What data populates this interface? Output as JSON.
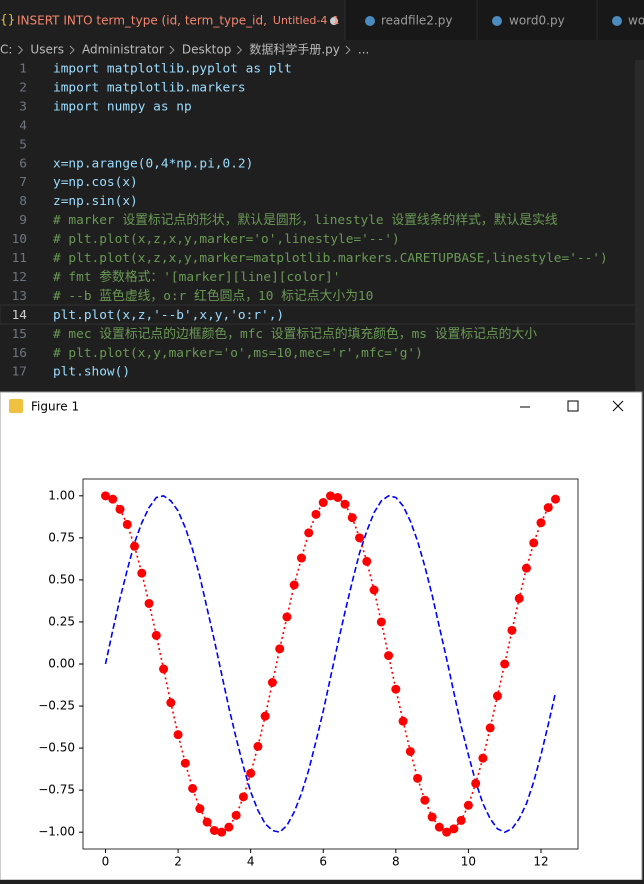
{
  "editor": {
    "tabs": [
      {
        "title": "INSERT INTO term_type (id, term_type_id,",
        "file": "Untitled-4",
        "badge": "1"
      },
      {
        "title": "readfile2.py"
      },
      {
        "title": "word0.py"
      },
      {
        "title": "wo"
      }
    ],
    "breadcrumbs": [
      "C:",
      "Users",
      "Administrator",
      "Desktop",
      "数据科学手册.py",
      "..."
    ],
    "lines": [
      {
        "number": 1,
        "text": "import matplotlib.pyplot as plt"
      },
      {
        "number": 2,
        "text": "import matplotlib.markers"
      },
      {
        "number": 3,
        "text": "import numpy as np"
      },
      {
        "number": 4
      },
      {
        "number": 5
      },
      {
        "number": 6,
        "text": "x=np.arange(0,4*np.pi,0.2)"
      },
      {
        "number": 7,
        "text": "y=np.cos(x)"
      },
      {
        "number": 8,
        "text": "z=np.sin(x)"
      },
      {
        "number": 9,
        "text": "# marker 设置标记点的形状，默认是圆形，linestyle 设置线条的样式，默认是实线"
      },
      {
        "number": 10,
        "text": "# plt.plot(x,z,x,y,marker='o',linestyle='--')"
      },
      {
        "number": 11,
        "text": "# plt.plot(x,z,x,y,marker=matplotlib.markers.CARETUPBASE,linestyle='--')"
      },
      {
        "number": 12,
        "text": "# fmt 参数格式：'[marker][line][color]'"
      },
      {
        "number": 13,
        "text": "# --b 蓝色虚线，o:r 红色圆点，10 标记点大小为10"
      },
      {
        "number": 14,
        "text": "plt.plot(x,z,'--b',x,y,'o:r',)"
      },
      {
        "number": 15,
        "text": "# mec 设置标记点的边框颜色，mfc 设置标记点的填充颜色，ms 设置标记点的大小"
      },
      {
        "number": 16,
        "text": "# plt.plot(x,y,marker='o',ms=10,mec='r',mfc='g')"
      },
      {
        "number": 17,
        "text": "plt.show()"
      }
    ],
    "current_line": 14
  },
  "window": {
    "title": "Figure 1"
  },
  "chart_data": {
    "type": "line",
    "x": [
      0,
      0.2,
      0.4,
      0.6,
      0.8,
      1.0,
      1.2,
      1.4,
      1.6,
      1.8,
      2.0,
      2.2,
      2.4,
      2.6,
      2.8,
      3.0,
      3.2,
      3.4,
      3.6,
      3.8,
      4.0,
      4.2,
      4.4,
      4.6,
      4.8,
      5.0,
      5.2,
      5.4,
      5.6,
      5.8,
      6.0,
      6.2,
      6.4,
      6.6,
      6.8,
      7.0,
      7.2,
      7.4,
      7.6,
      7.8,
      8.0,
      8.2,
      8.4,
      8.6,
      8.8,
      9.0,
      9.2,
      9.4,
      9.6,
      9.8,
      10.0,
      10.2,
      10.4,
      10.6,
      10.8,
      11.0,
      11.2,
      11.4,
      11.6,
      11.8,
      12.0,
      12.2,
      12.4
    ],
    "series": [
      {
        "color": "#0000ff",
        "line_style": "dashed",
        "values": [
          0,
          0.2,
          0.39,
          0.56,
          0.72,
          0.84,
          0.93,
          0.99,
          1.0,
          0.97,
          0.91,
          0.81,
          0.68,
          0.52,
          0.33,
          0.14,
          -0.06,
          -0.26,
          -0.44,
          -0.61,
          -0.76,
          -0.87,
          -0.95,
          -0.99,
          -1.0,
          -0.96,
          -0.88,
          -0.77,
          -0.63,
          -0.46,
          -0.28,
          -0.08,
          0.12,
          0.31,
          0.49,
          0.66,
          0.79,
          0.9,
          0.97,
          1.0,
          0.99,
          0.94,
          0.85,
          0.73,
          0.58,
          0.41,
          0.22,
          0.03,
          -0.17,
          -0.37,
          -0.54,
          -0.7,
          -0.83,
          -0.92,
          -0.98,
          -1.0,
          -0.98,
          -0.92,
          -0.83,
          -0.7,
          -0.54,
          -0.36,
          -0.17
        ]
      },
      {
        "color": "#ff0000",
        "line_style": "dotted",
        "marker": "circle",
        "values": [
          1.0,
          0.98,
          0.92,
          0.83,
          0.7,
          0.54,
          0.36,
          0.17,
          -0.03,
          -0.23,
          -0.42,
          -0.59,
          -0.74,
          -0.86,
          -0.94,
          -0.99,
          -1.0,
          -0.97,
          -0.9,
          -0.79,
          -0.65,
          -0.49,
          -0.31,
          -0.11,
          0.09,
          0.28,
          0.47,
          0.63,
          0.78,
          0.89,
          0.96,
          1.0,
          0.99,
          0.95,
          0.87,
          0.75,
          0.61,
          0.44,
          0.25,
          0.05,
          -0.15,
          -0.34,
          -0.52,
          -0.68,
          -0.81,
          -0.91,
          -0.97,
          -1.0,
          -0.98,
          -0.93,
          -0.84,
          -0.71,
          -0.56,
          -0.38,
          -0.19,
          0.0,
          0.2,
          0.39,
          0.57,
          0.72,
          0.84,
          0.93,
          0.98
        ]
      }
    ],
    "xlim": [
      -0.62,
      13.02
    ],
    "ylim": [
      -1.1,
      1.1
    ],
    "xticks": [
      0,
      2,
      4,
      6,
      8,
      10,
      12
    ],
    "yticks": [
      {
        "value": -1,
        "label": "−1.00"
      },
      {
        "value": -0.75,
        "label": "−0.75"
      },
      {
        "value": -0.5,
        "label": "−0.50"
      },
      {
        "value": -0.25,
        "label": "−0.25"
      },
      {
        "value": 0,
        "label": "0.00"
      },
      {
        "value": 0.25,
        "label": "0.25"
      },
      {
        "value": 0.5,
        "label": "0.50"
      },
      {
        "value": 0.75,
        "label": "0.75"
      },
      {
        "value": 1,
        "label": "1.00"
      }
    ],
    "grid": false
  }
}
